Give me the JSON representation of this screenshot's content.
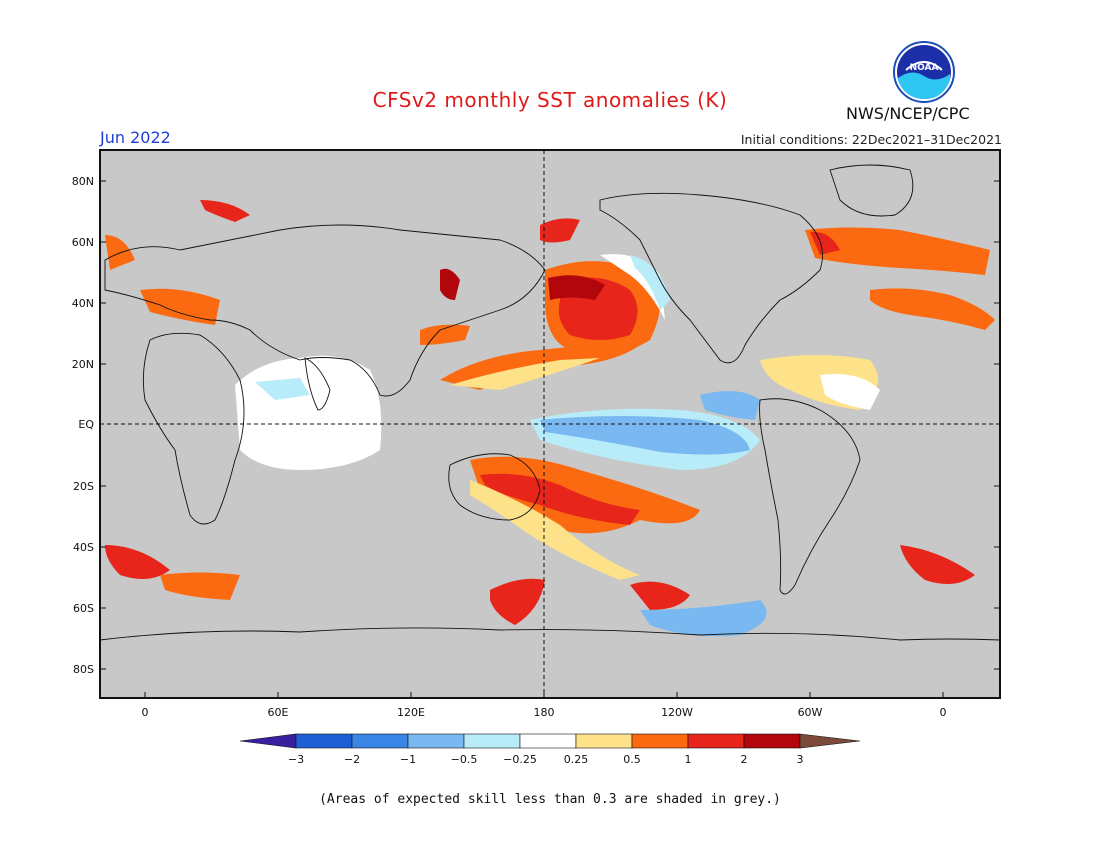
{
  "header": {
    "title": "CFSv2 monthly SST anomalies (K)",
    "month": "Jun 2022",
    "initial_conditions": "Initial conditions: 22Dec2021–31Dec2021",
    "agency": "NWS/NCEP/CPC",
    "logo_text": "NOAA"
  },
  "map": {
    "lat_labels": [
      "80N",
      "60N",
      "40N",
      "20N",
      "EQ",
      "20S",
      "40S",
      "60S",
      "80S"
    ],
    "lon_labels": [
      "0",
      "60E",
      "120E",
      "180",
      "120W",
      "60W",
      "0"
    ],
    "land_color": "#c8c8c8",
    "ocean_default": "#c8c8c8"
  },
  "colorbar": {
    "labels": [
      "−3",
      "−2",
      "−1",
      "−0.5",
      "−0.25",
      "0.25",
      "0.5",
      "1",
      "2",
      "3"
    ],
    "colors": [
      "#3a1fa0",
      "#1f5fd6",
      "#3a86e6",
      "#7ab8f2",
      "#b8ecf8",
      "#ffffff",
      "#fde28a",
      "#fb6a10",
      "#e8251a",
      "#b0060c",
      "#7b4a3a"
    ]
  },
  "footer": {
    "skill_note": "(Areas of expected skill less than 0.3 are shaded in grey.)"
  }
}
